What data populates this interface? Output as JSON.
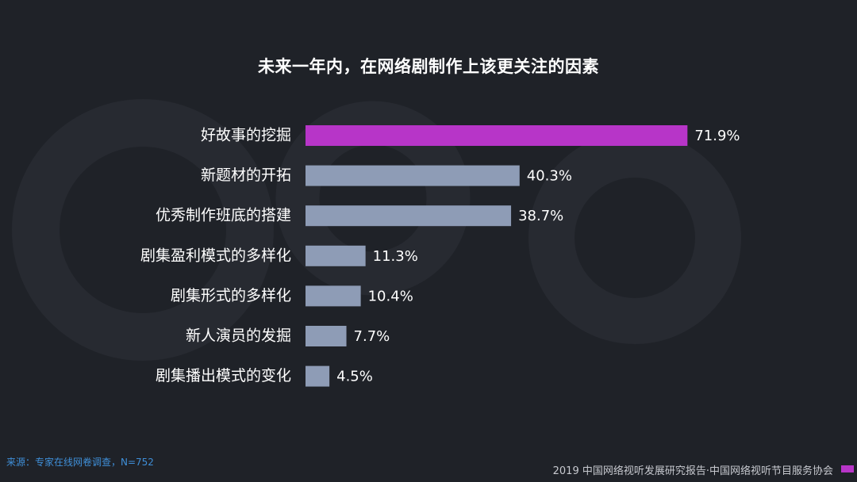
{
  "chart_data": {
    "type": "bar",
    "orientation": "horizontal",
    "title": "未来一年内，在网络剧制作上该更关注的因素",
    "categories": [
      "好故事的挖掘",
      "新题材的开拓",
      "优秀制作班底的搭建",
      "剧集盈利模式的多样化",
      "剧集形式的多样化",
      "新人演员的发掘",
      "剧集播出模式的变化"
    ],
    "values": [
      71.9,
      40.3,
      38.7,
      11.3,
      10.4,
      7.7,
      4.5
    ],
    "value_labels": [
      "71.9%",
      "40.3%",
      "38.7%",
      "11.3%",
      "10.4%",
      "7.7%",
      "4.5%"
    ],
    "xlim": [
      0,
      72
    ],
    "grid": false,
    "colors": {
      "highlight": "#b735c8",
      "default": "#8e9cb6"
    }
  },
  "footer": {
    "source": "来源：专家在线网卷调查，N=752",
    "credit": "2019 中国网络视听发展研究报告·中国网络视听节目服务协会"
  }
}
